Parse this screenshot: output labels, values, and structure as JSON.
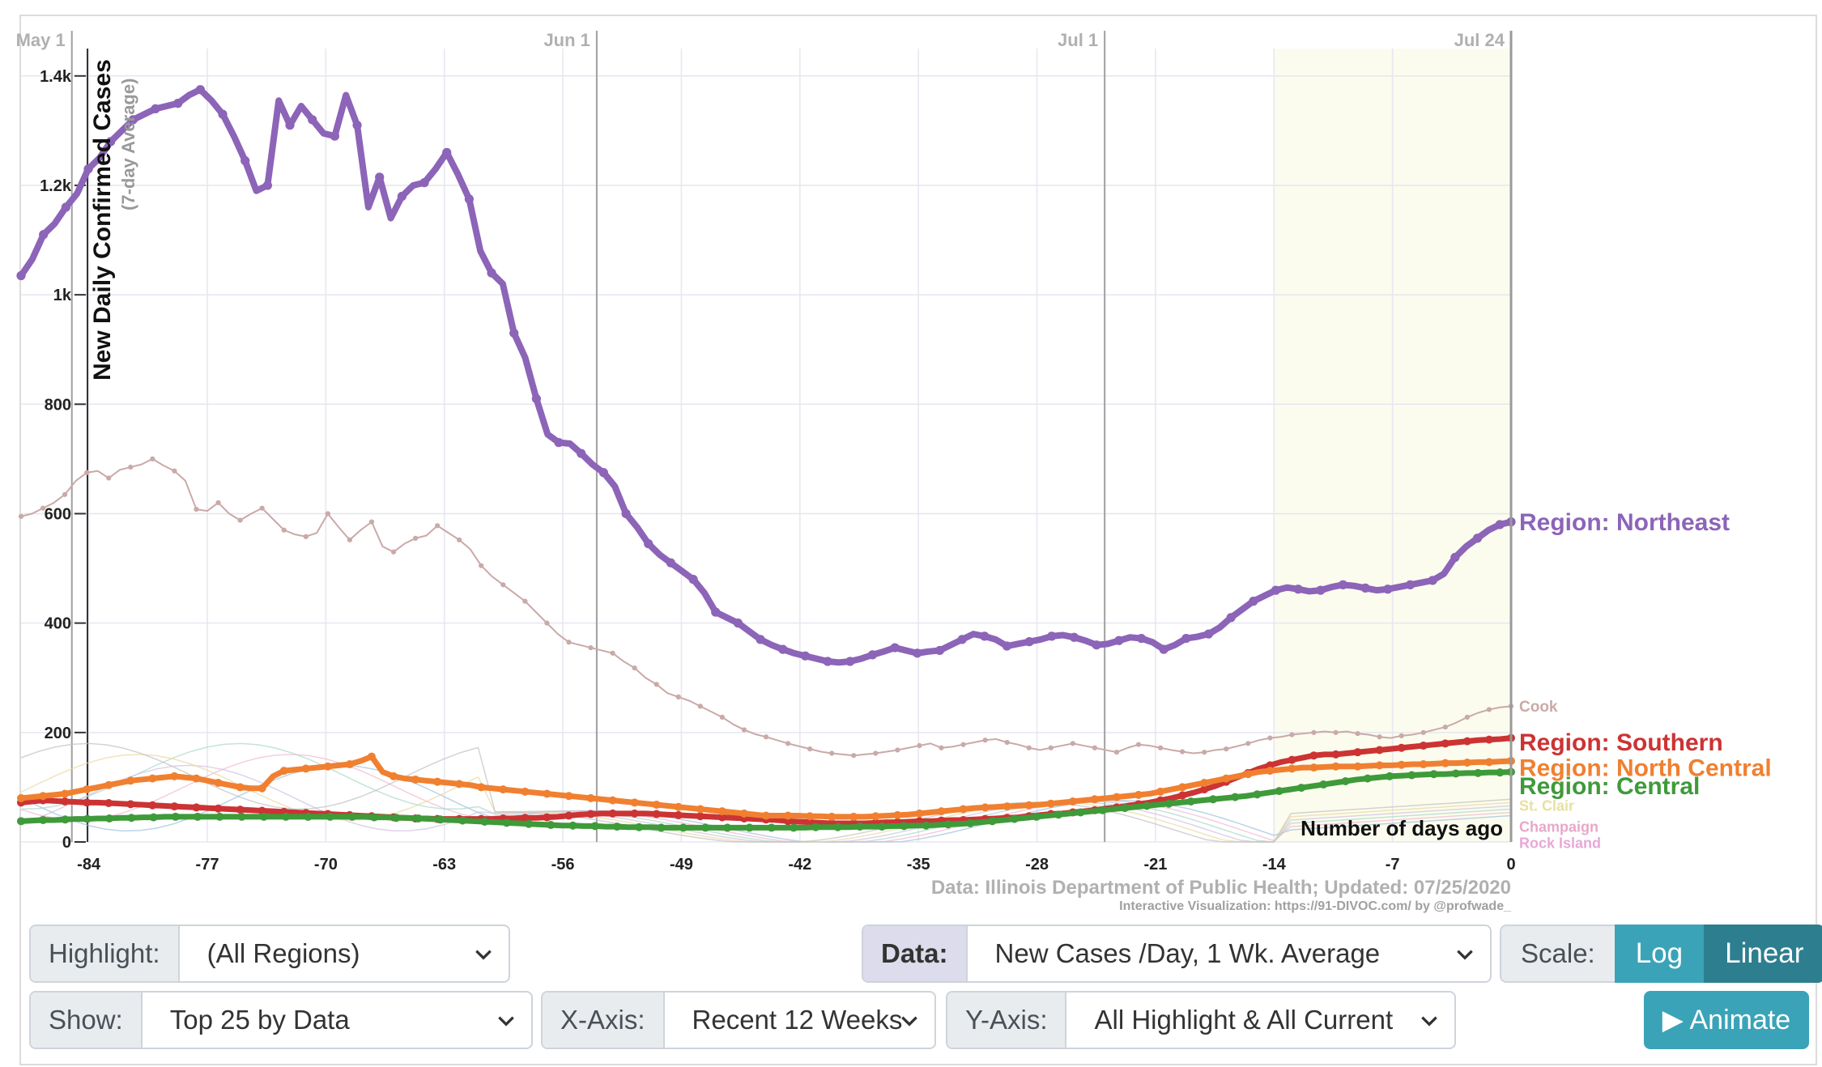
{
  "chart_data": {
    "type": "line",
    "ylabel": "New Daily Confirmed Cases",
    "ylabel_sub": "(7-day Average)",
    "xlabel": "Number of days ago",
    "source": "Data: Illinois Department of Public Health; Updated: 07/25/2020",
    "credit": "Interactive Visualization: https://91-DIVOC.com/ by @profwade_",
    "xlim": [
      -88,
      0
    ],
    "ylim": [
      0,
      1450
    ],
    "x_ticks": [
      -84,
      -77,
      -70,
      -63,
      -56,
      -49,
      -42,
      -35,
      -28,
      -21,
      -14,
      -7,
      0
    ],
    "y_ticks": [
      {
        "v": 0,
        "t": "0"
      },
      {
        "v": 200,
        "t": "200"
      },
      {
        "v": 400,
        "t": "400"
      },
      {
        "v": 600,
        "t": "600"
      },
      {
        "v": 800,
        "t": "800"
      },
      {
        "v": 1000,
        "t": "1k"
      },
      {
        "v": 1200,
        "t": "1.2k"
      },
      {
        "v": 1400,
        "t": "1.4k"
      }
    ],
    "date_markers": [
      {
        "x": -85,
        "t": "May 1"
      },
      {
        "x": -54,
        "t": "Jun 1"
      },
      {
        "x": -24,
        "t": "Jul 1"
      },
      {
        "x": 0,
        "t": "Jul 24"
      }
    ],
    "shade_from_x": -14,
    "grid": true,
    "series": [
      {
        "name": "Cook",
        "color": "#c9aaa8",
        "width": 2,
        "dot": 5,
        "x0": -88,
        "values": [
          595,
          600,
          610,
          620,
          635,
          660,
          675,
          678,
          665,
          680,
          685,
          690,
          700,
          688,
          678,
          660,
          608,
          605,
          620,
          600,
          588,
          600,
          610,
          590,
          570,
          562,
          558,
          565,
          600,
          575,
          552,
          570,
          585,
          540,
          530,
          545,
          555,
          560,
          578,
          565,
          552,
          535,
          505,
          485,
          470,
          455,
          440,
          420,
          400,
          380,
          365,
          360,
          355,
          350,
          345,
          330,
          318,
          300,
          288,
          272,
          265,
          258,
          248,
          238,
          228,
          215,
          205,
          197,
          192,
          186,
          180,
          175,
          170,
          165,
          162,
          160,
          158,
          160,
          162,
          165,
          168,
          172,
          176,
          180,
          172,
          174,
          178,
          182,
          186,
          188,
          182,
          178,
          172,
          168,
          172,
          176,
          180,
          176,
          172,
          168,
          164,
          172,
          178,
          176,
          172,
          168,
          165,
          162,
          164,
          168,
          170,
          175,
          180,
          186,
          190,
          192,
          196,
          198,
          200,
          202,
          200,
          202,
          198,
          196,
          192,
          190,
          194,
          196,
          200,
          205,
          210,
          218,
          228,
          236,
          242,
          246,
          248
        ]
      },
      {
        "name": "Region: Northeast",
        "color": "#8c64b8",
        "width": 8,
        "dot": 9,
        "x0": -88,
        "values": [
          1035,
          1065,
          1110,
          1130,
          1160,
          1185,
          1230,
          1250,
          1280,
          1300,
          1320,
          1330,
          1340,
          1345,
          1350,
          1365,
          1375,
          1355,
          1330,
          1290,
          1245,
          1190,
          1200,
          1355,
          1310,
          1345,
          1320,
          1295,
          1290,
          1365,
          1310,
          1160,
          1215,
          1140,
          1180,
          1200,
          1205,
          1230,
          1260,
          1220,
          1175,
          1080,
          1040,
          1020,
          930,
          885,
          810,
          745,
          730,
          728,
          710,
          690,
          675,
          650,
          600,
          575,
          545,
          525,
          510,
          495,
          480,
          455,
          420,
          410,
          400,
          385,
          370,
          360,
          352,
          345,
          340,
          335,
          330,
          328,
          330,
          335,
          342,
          348,
          355,
          350,
          345,
          348,
          350,
          360,
          370,
          380,
          376,
          370,
          358,
          362,
          366,
          370,
          376,
          378,
          374,
          368,
          360,
          362,
          368,
          374,
          372,
          365,
          352,
          360,
          372,
          375,
          380,
          392,
          410,
          425,
          440,
          450,
          460,
          465,
          462,
          458,
          460,
          466,
          470,
          468,
          464,
          460,
          462,
          466,
          470,
          474,
          478,
          490,
          520,
          540,
          555,
          570,
          580,
          585
        ]
      },
      {
        "name": "Region: Southern",
        "color": "#cc3333",
        "width": 7,
        "dot": 8,
        "x0": -88,
        "values": [
          72,
          74,
          76,
          75,
          74,
          73,
          72,
          72,
          71,
          70,
          69,
          68,
          67,
          66,
          65,
          64,
          63,
          62,
          61,
          60,
          59,
          58,
          57,
          56,
          55,
          54,
          53,
          52,
          51,
          50,
          49,
          48,
          47,
          46,
          45,
          44,
          43,
          43,
          42,
          42,
          42,
          42,
          42,
          42,
          43,
          43,
          44,
          44,
          45,
          46,
          48,
          50,
          51,
          52,
          52,
          52,
          52,
          52,
          51,
          50,
          49,
          48,
          47,
          46,
          45,
          44,
          43,
          42,
          41,
          40,
          38,
          37,
          36,
          35,
          34,
          34,
          34,
          34,
          35,
          36,
          36,
          37,
          38,
          38,
          39,
          40,
          40,
          41,
          42,
          43,
          44,
          45,
          47,
          49,
          51,
          52,
          54,
          56,
          58,
          61,
          63,
          66,
          69,
          72,
          76,
          80,
          85,
          90,
          96,
          102,
          110,
          118,
          126,
          134,
          140,
          146,
          150,
          154,
          158,
          160,
          160,
          162,
          164,
          166,
          168,
          170,
          172,
          174,
          176,
          178,
          180,
          182,
          184,
          186,
          187,
          188,
          190
        ]
      },
      {
        "name": "Region: North Central",
        "color": "#f08030",
        "width": 7,
        "dot": 8,
        "x0": -88,
        "values": [
          80,
          82,
          84,
          86,
          88,
          92,
          96,
          100,
          104,
          108,
          112,
          114,
          116,
          118,
          120,
          118,
          116,
          112,
          108,
          104,
          100,
          98,
          98,
          120,
          130,
          132,
          134,
          136,
          138,
          140,
          142,
          148,
          156,
          128,
          120,
          116,
          114,
          112,
          110,
          108,
          106,
          104,
          100,
          98,
          96,
          94,
          92,
          90,
          88,
          86,
          84,
          82,
          80,
          78,
          76,
          74,
          72,
          70,
          68,
          66,
          64,
          62,
          60,
          58,
          56,
          54,
          52,
          50,
          48,
          48,
          48,
          48,
          47,
          47,
          46,
          46,
          46,
          46,
          47,
          48,
          49,
          50,
          52,
          54,
          56,
          58,
          60,
          62,
          63,
          64,
          65,
          66,
          67,
          68,
          70,
          72,
          74,
          76,
          78,
          80,
          82,
          84,
          86,
          88,
          92,
          96,
          100,
          104,
          108,
          112,
          116,
          120,
          124,
          128,
          130,
          132,
          134,
          136,
          136,
          137,
          138,
          138,
          138,
          139,
          140,
          140,
          141,
          142,
          142,
          143,
          144,
          144,
          145,
          146,
          146,
          147,
          148
        ]
      },
      {
        "name": "Region: Central",
        "color": "#3f9a3a",
        "width": 7,
        "dot": 8,
        "x0": -88,
        "values": [
          38,
          39,
          40,
          40,
          41,
          42,
          42,
          43,
          43,
          44,
          44,
          45,
          45,
          46,
          46,
          46,
          46,
          46,
          46,
          46,
          46,
          46,
          46,
          46,
          46,
          46,
          46,
          46,
          46,
          46,
          46,
          46,
          45,
          45,
          44,
          44,
          43,
          42,
          41,
          40,
          39,
          38,
          37,
          36,
          35,
          34,
          33,
          32,
          31,
          30,
          30,
          29,
          29,
          28,
          28,
          27,
          27,
          27,
          26,
          26,
          26,
          26,
          26,
          26,
          26,
          26,
          26,
          26,
          26,
          26,
          26,
          26,
          27,
          27,
          27,
          27,
          28,
          28,
          28,
          29,
          29,
          30,
          30,
          31,
          32,
          33,
          34,
          36,
          38,
          40,
          42,
          44,
          46,
          48,
          50,
          52,
          54,
          56,
          58,
          60,
          62,
          64,
          66,
          68,
          70,
          72,
          74,
          76,
          78,
          80,
          82,
          84,
          87,
          90,
          93,
          96,
          99,
          102,
          105,
          108,
          111,
          114,
          116,
          118,
          120,
          121,
          122,
          123,
          124,
          124,
          125,
          126,
          126,
          127,
          127,
          128
        ]
      }
    ],
    "end_labels": [
      {
        "name": "Region: Northeast",
        "color": "#8c64b8",
        "y": 585,
        "size": 30,
        "bold": true
      },
      {
        "name": "Cook",
        "color": "#c9aaa8",
        "y": 248,
        "size": 19,
        "bold": true
      },
      {
        "name": "Region: Southern",
        "color": "#cc3333",
        "y": 183,
        "size": 30,
        "bold": true
      },
      {
        "name": "Region: North Central",
        "color": "#f08030",
        "y": 136,
        "size": 30,
        "bold": true
      },
      {
        "name": "Region: Central",
        "color": "#3f9a3a",
        "y": 103,
        "size": 30,
        "bold": true
      },
      {
        "name": "St. Clair",
        "color": "#e8e0a0",
        "y": 66,
        "size": 18,
        "bold": true
      },
      {
        "name": "Champaign",
        "color": "#e8a8c8",
        "y": 28,
        "size": 18,
        "bold": true
      },
      {
        "name": "Rock Island",
        "color": "#e8a8d8",
        "y": -2,
        "size": 18,
        "bold": true
      }
    ]
  },
  "controls": {
    "highlight_label": "Highlight:",
    "highlight_value": "(All Regions)",
    "data_label": "Data:",
    "data_value": "New Cases /Day, 1 Wk. Average",
    "scale_label": "Scale:",
    "scale_log": "Log",
    "scale_linear": "Linear",
    "show_label": "Show:",
    "show_value": "Top 25 by Data",
    "xaxis_label": "X-Axis:",
    "xaxis_value": "Recent 12 Weeks",
    "yaxis_label": "Y-Axis:",
    "yaxis_value": "All Highlight & All Current",
    "animate_label": "▶ Animate"
  }
}
